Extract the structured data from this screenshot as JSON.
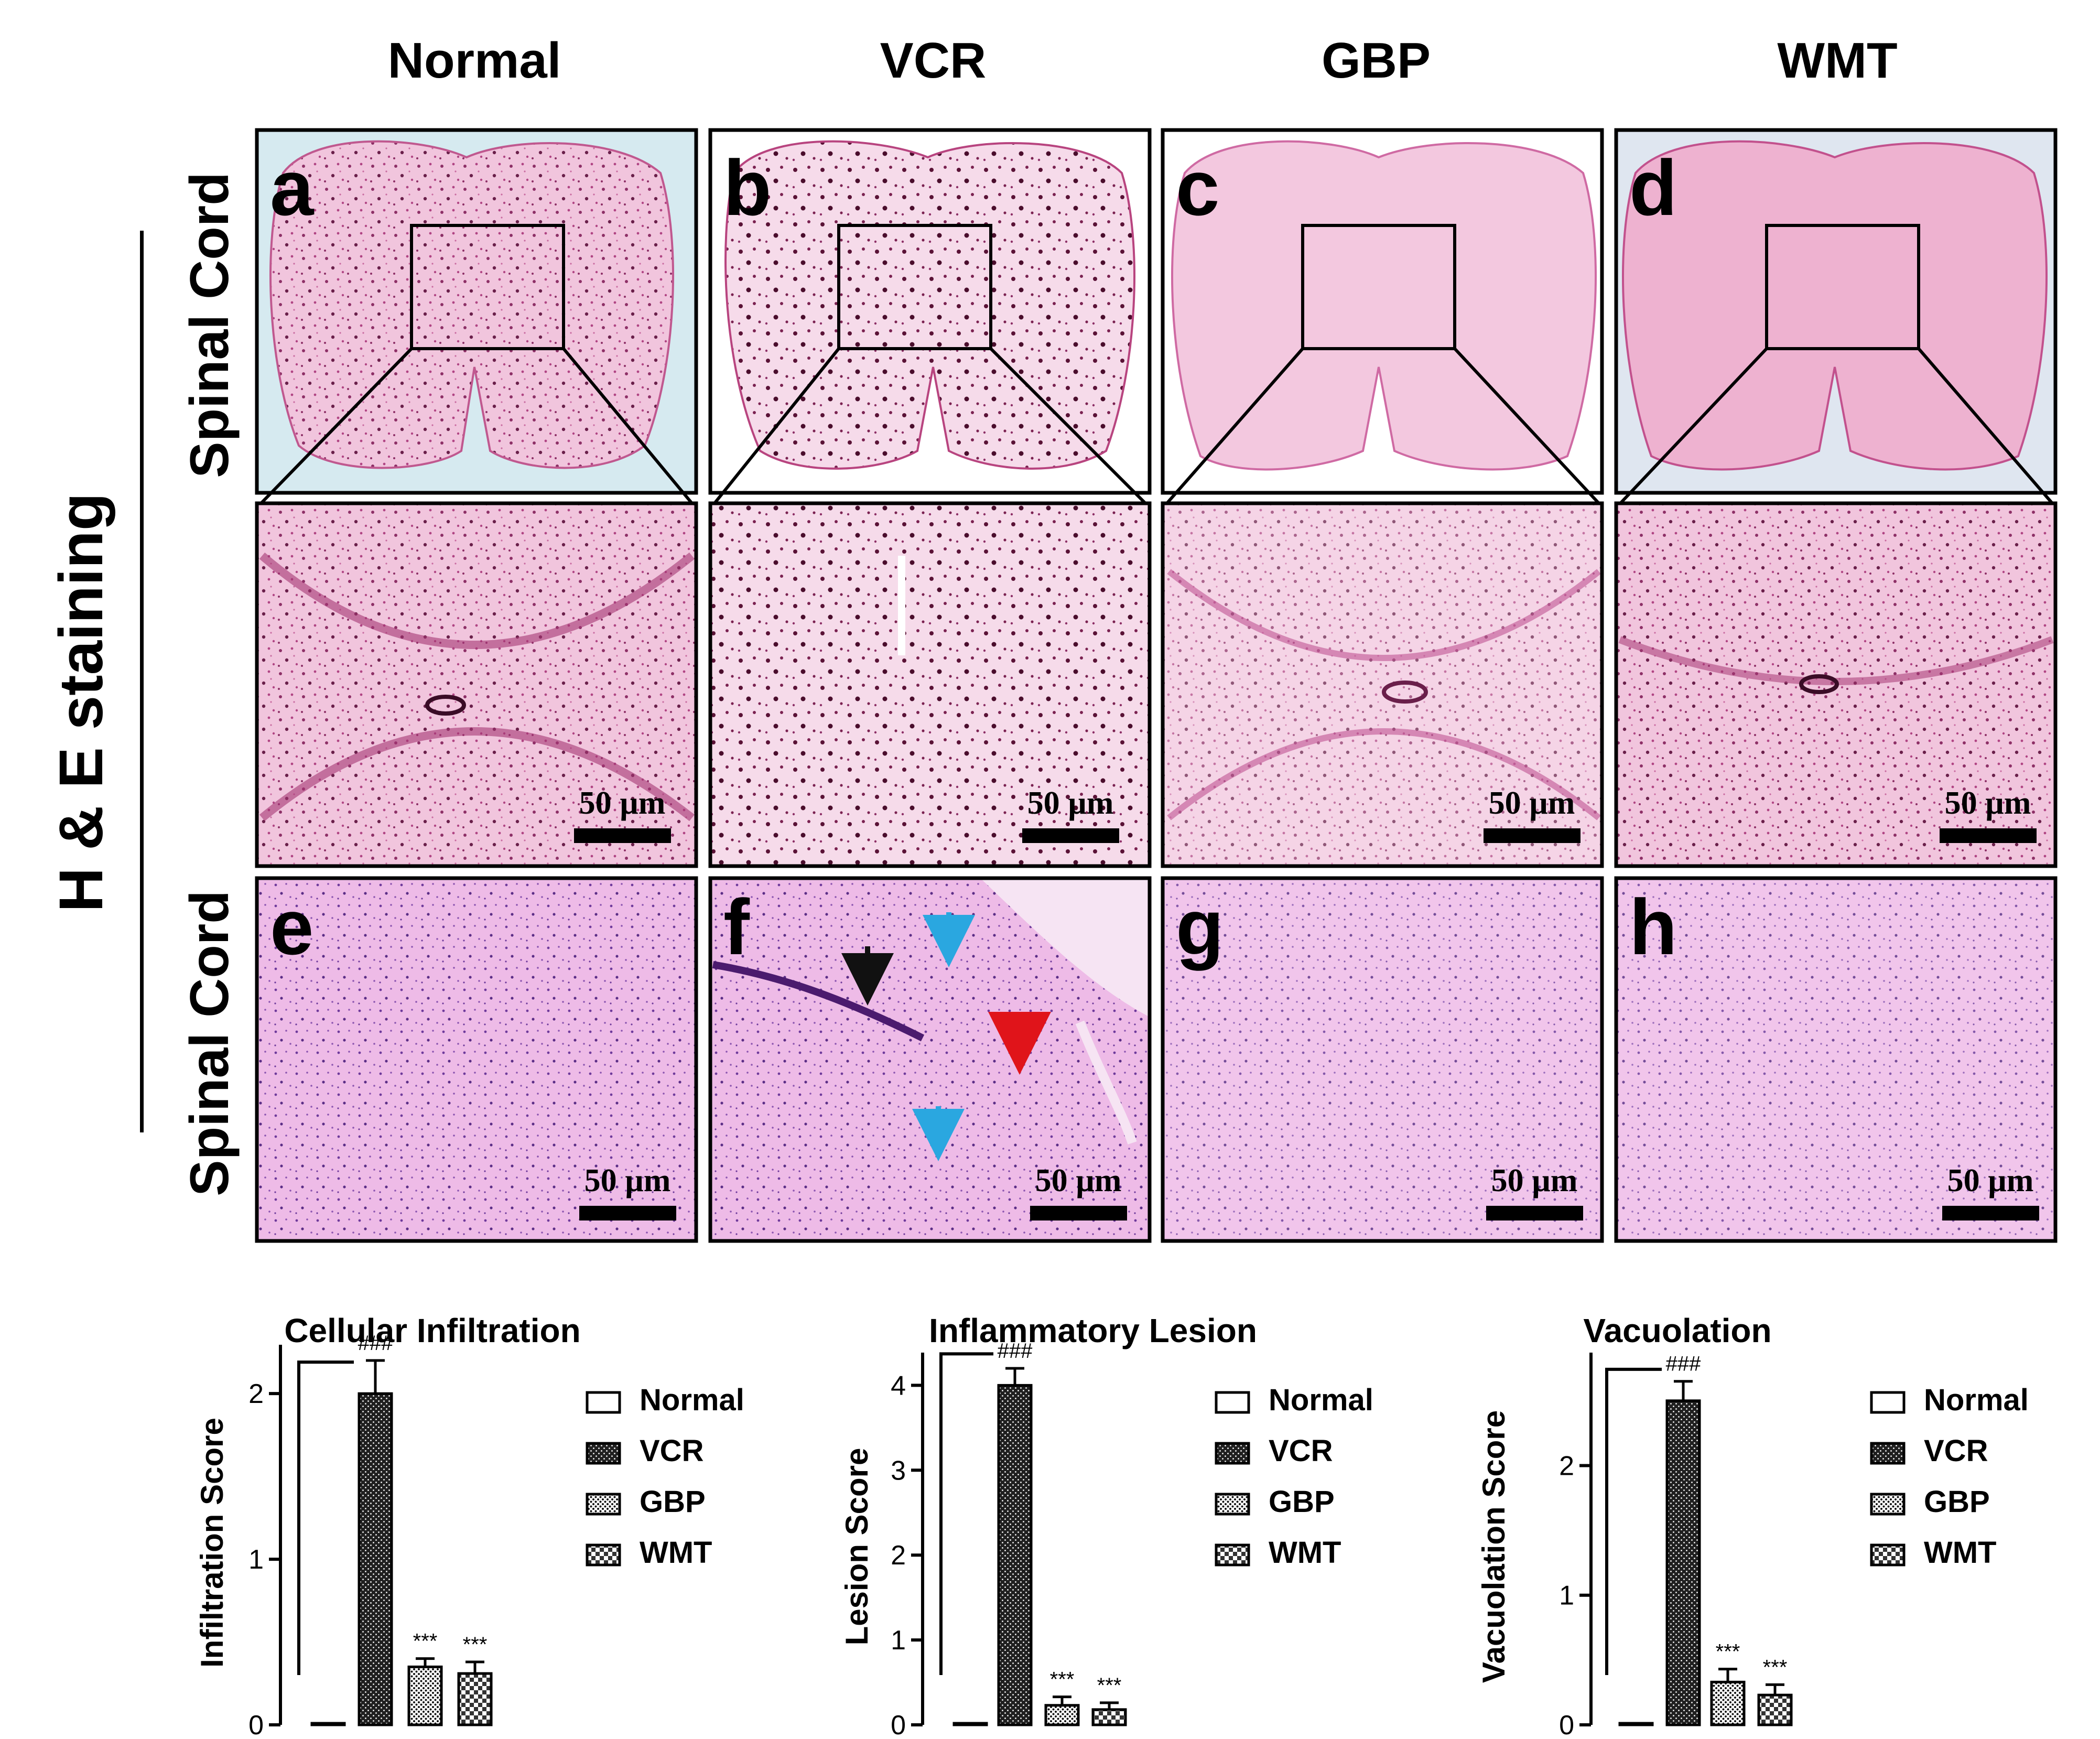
{
  "columns": [
    "Normal",
    "VCR",
    "GBP",
    "WMT"
  ],
  "stain_label": "H & E staining",
  "tissue_label": "Spinal Cord",
  "panel_letters": [
    "a",
    "b",
    "c",
    "d",
    "e",
    "f",
    "g",
    "h"
  ],
  "scale_bar": "50 µm",
  "colors": {
    "he_pink": "#e9a8cc",
    "he_pink_deep": "#d46ea7",
    "he_light": "#f5dcea",
    "nucleus": "#6a1f4a",
    "row3_pink": "#eab4e4",
    "row3_nucleus": "#7a3d8e",
    "arrow_black": "#111111",
    "arrow_red": "#e0141a",
    "arrow_blue": "#2aa7e0"
  },
  "legend": [
    "Normal",
    "VCR",
    "GBP",
    "WMT"
  ],
  "chart_data": [
    {
      "type": "bar",
      "title": "Cellular Infiltration",
      "ylabel": "Infiltration Score",
      "xlabel": "",
      "categories": [
        "Normal",
        "VCR",
        "GBP",
        "WMT"
      ],
      "values": [
        0,
        2.0,
        0.35,
        0.31
      ],
      "errors": [
        0,
        0.2,
        0.05,
        0.07
      ],
      "ylim": [
        0,
        2.2
      ],
      "yticks": [
        "0",
        "1",
        "2"
      ],
      "significance": [
        "",
        "###",
        "***",
        "***"
      ],
      "legend_position": "right"
    },
    {
      "type": "bar",
      "title": "Inflammatory Lesion",
      "ylabel": "Lesion Score",
      "xlabel": "",
      "categories": [
        "Normal",
        "VCR",
        "GBP",
        "WMT"
      ],
      "values": [
        0,
        4.0,
        0.23,
        0.18
      ],
      "errors": [
        0,
        0.2,
        0.1,
        0.08
      ],
      "ylim": [
        0,
        4.2
      ],
      "yticks": [
        "0",
        "1",
        "2",
        "3",
        "4"
      ],
      "significance": [
        "",
        "###",
        "***",
        "***"
      ],
      "legend_position": "right"
    },
    {
      "type": "bar",
      "title": "Vacuolation",
      "ylabel": "Vacuolation Score",
      "xlabel": "",
      "categories": [
        "Normal",
        "VCR",
        "GBP",
        "WMT"
      ],
      "values": [
        0,
        2.5,
        0.33,
        0.23
      ],
      "errors": [
        0,
        0.15,
        0.1,
        0.08
      ],
      "ylim": [
        0,
        2.75
      ],
      "yticks": [
        "0",
        "1",
        "2"
      ],
      "significance": [
        "",
        "###",
        "***",
        "***"
      ],
      "legend_position": "right"
    }
  ]
}
